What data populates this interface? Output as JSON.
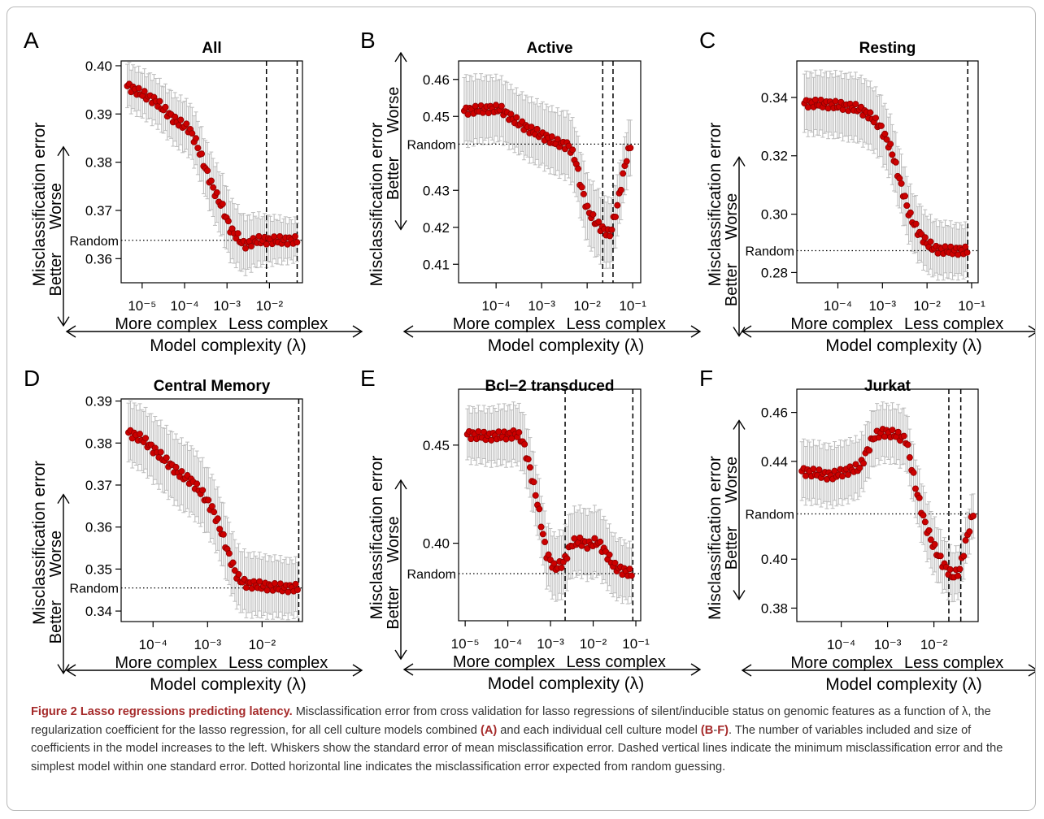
{
  "chart_data": [
    {
      "panel": "A",
      "title": "All",
      "type": "scatter",
      "xlabel": "Model complexity (λ)",
      "ylabel": "Misclassification error",
      "arrow_left_label": "More complex",
      "arrow_right_label": "Less complex",
      "y_arrow_up_label": "Worse",
      "y_arrow_down_label": "Better",
      "random_label": "Random",
      "x_scale": "log",
      "xlim": [
        3.2e-06,
        0.06
      ],
      "ylim": [
        0.355,
        0.401
      ],
      "x_tick_labels": [
        "10⁻⁵",
        "10⁻⁴",
        "10⁻³",
        "10⁻²"
      ],
      "x_ticks": [
        1e-05,
        0.0001,
        0.001,
        0.01
      ],
      "y_ticks": [
        0.36,
        0.37,
        0.38,
        0.39,
        0.4
      ],
      "y_tick_labels": [
        "0.36",
        "0.37",
        "0.38",
        "0.39",
        "0.40"
      ],
      "random_y": 0.3638,
      "vlines": [
        0.0085,
        0.045
      ],
      "curve": {
        "log_x": [
          -5.35,
          -4.7,
          -4.2,
          -3.9,
          -3.72,
          -3.5,
          -3.3,
          -3.1,
          -3.0,
          -2.9,
          -2.75,
          -2.6,
          -2.3,
          -1.9,
          -1.35
        ],
        "y": [
          0.3958,
          0.3928,
          0.3885,
          0.387,
          0.384,
          0.3785,
          0.374,
          0.3705,
          0.368,
          0.3658,
          0.3645,
          0.3628,
          0.3638,
          0.3638,
          0.3638
        ]
      },
      "err": {
        "log_x": [
          -5.35,
          -4.5,
          -3.7,
          -3.0,
          -2.2,
          -1.35
        ],
        "se": [
          0.0045,
          0.0048,
          0.0055,
          0.0065,
          0.005,
          0.004
        ]
      }
    },
    {
      "panel": "B",
      "title": "Active",
      "type": "scatter",
      "xlabel": "Model complexity (λ)",
      "ylabel": "Misclassification error",
      "arrow_left_label": "More complex",
      "arrow_right_label": "Less complex",
      "y_arrow_up_label": "Worse",
      "y_arrow_down_label": "Better",
      "random_label": "Random",
      "x_scale": "log",
      "xlim": [
        1.5e-05,
        0.15
      ],
      "ylim": [
        0.405,
        0.465
      ],
      "x_tick_labels": [
        "10⁻⁴",
        "10⁻³",
        "10⁻²",
        "10⁻¹"
      ],
      "x_ticks": [
        0.0001,
        0.001,
        0.01,
        0.1
      ],
      "y_ticks": [
        0.41,
        0.42,
        0.43,
        0.45,
        0.46
      ],
      "y_tick_labels": [
        "0.41",
        "0.42",
        "0.43",
        "0.45",
        "0.46"
      ],
      "random_y": 0.4425,
      "vlines": [
        0.022,
        0.037
      ],
      "curve": {
        "log_x": [
          -4.7,
          -4.2,
          -3.9,
          -3.6,
          -3.4,
          -3.2,
          -3.0,
          -2.7,
          -2.4,
          -2.25,
          -2.15,
          -2.0,
          -1.85,
          -1.7,
          -1.5,
          -1.35,
          -1.15,
          -1.05
        ],
        "y": [
          0.4515,
          0.452,
          0.452,
          0.449,
          0.4475,
          0.446,
          0.445,
          0.443,
          0.442,
          0.438,
          0.432,
          0.425,
          0.422,
          0.42,
          0.418,
          0.425,
          0.438,
          0.442
        ]
      },
      "err": {
        "log_x": [
          -4.7,
          -3.6,
          -2.6,
          -2.0,
          -1.6,
          -1.05
        ],
        "se": [
          0.009,
          0.008,
          0.0085,
          0.009,
          0.009,
          0.0075
        ]
      }
    },
    {
      "panel": "C",
      "title": "Resting",
      "type": "scatter",
      "xlabel": "Model complexity (λ)",
      "ylabel": "Misclassification error",
      "arrow_left_label": "More complex",
      "arrow_right_label": "Less complex",
      "y_arrow_up_label": "Worse",
      "y_arrow_down_label": "Better",
      "random_label": "Random",
      "x_scale": "log",
      "xlim": [
        1.2e-05,
        0.14
      ],
      "ylim": [
        0.2765,
        0.3525
      ],
      "x_tick_labels": [
        "10⁻⁴",
        "10⁻³",
        "10⁻²",
        "10⁻¹"
      ],
      "x_ticks": [
        0.0001,
        0.001,
        0.01,
        0.1
      ],
      "y_ticks": [
        0.28,
        0.3,
        0.32,
        0.34
      ],
      "y_tick_labels": [
        "0.28",
        "0.30",
        "0.32",
        "0.34"
      ],
      "random_y": 0.2875,
      "vlines": [
        0.082
      ],
      "curve": {
        "log_x": [
          -4.75,
          -4.3,
          -3.85,
          -3.55,
          -3.3,
          -3.05,
          -2.8,
          -2.6,
          -2.4,
          -2.2,
          -2.0,
          -1.8,
          -1.5,
          -1.1
        ],
        "y": [
          0.338,
          0.3378,
          0.337,
          0.3362,
          0.334,
          0.33,
          0.322,
          0.311,
          0.3,
          0.294,
          0.29,
          0.288,
          0.2875,
          0.2875
        ]
      },
      "err": {
        "log_x": [
          -4.75,
          -3.5,
          -2.5,
          -1.1
        ],
        "se": [
          0.01,
          0.011,
          0.01,
          0.0085
        ]
      }
    },
    {
      "panel": "D",
      "title": "Central Memory",
      "type": "scatter",
      "xlabel": "Model complexity (λ)",
      "ylabel": "Misclassification error",
      "arrow_left_label": "More complex",
      "arrow_right_label": "Less complex",
      "y_arrow_up_label": "Worse",
      "y_arrow_down_label": "Better",
      "random_label": "Random",
      "x_scale": "log",
      "xlim": [
        2.6e-05,
        0.055
      ],
      "ylim": [
        0.3375,
        0.3905
      ],
      "x_tick_labels": [
        "10⁻⁴",
        "10⁻³",
        "10⁻²"
      ],
      "x_ticks": [
        0.0001,
        0.001,
        0.01
      ],
      "y_ticks": [
        0.34,
        0.35,
        0.36,
        0.37,
        0.38,
        0.39
      ],
      "y_tick_labels": [
        "0.34",
        "0.35",
        "0.36",
        "0.37",
        "0.38",
        "0.39"
      ],
      "random_y": 0.3455,
      "vlines": [
        0.047
      ],
      "curve": {
        "log_x": [
          -4.45,
          -4.2,
          -3.95,
          -3.7,
          -3.5,
          -3.3,
          -3.1,
          -2.9,
          -2.75,
          -2.6,
          -2.45,
          -2.3,
          -2.0,
          -1.6,
          -1.35
        ],
        "y": [
          0.3825,
          0.381,
          0.378,
          0.375,
          0.3725,
          0.371,
          0.368,
          0.364,
          0.359,
          0.353,
          0.348,
          0.3465,
          0.346,
          0.3455,
          0.3455
        ]
      },
      "err": {
        "log_x": [
          -4.45,
          -3.5,
          -2.7,
          -1.35
        ],
        "se": [
          0.007,
          0.008,
          0.0075,
          0.0065
        ]
      }
    },
    {
      "panel": "E",
      "title": "Bcl−2 transduced",
      "type": "scatter",
      "xlabel": "Model complexity (λ)",
      "ylabel": "Misclassification error",
      "arrow_left_label": "More complex",
      "arrow_right_label": "Less complex",
      "y_arrow_up_label": "Worse",
      "y_arrow_down_label": "Better",
      "random_label": "Random",
      "x_scale": "log",
      "xlim": [
        7e-06,
        0.13
      ],
      "ylim": [
        0.3605,
        0.4785
      ],
      "x_tick_labels": [
        "10⁻⁵",
        "10⁻⁴",
        "10⁻³",
        "10⁻²",
        "10⁻¹"
      ],
      "x_ticks": [
        1e-05,
        0.0001,
        0.001,
        0.01,
        0.1
      ],
      "y_ticks": [
        0.4,
        0.45
      ],
      "y_tick_labels": [
        "0.40",
        "0.45"
      ],
      "random_y": 0.3845,
      "vlines": [
        0.0022,
        0.085
      ],
      "curve": {
        "log_x": [
          -4.95,
          -4.5,
          -4.0,
          -3.8,
          -3.65,
          -3.5,
          -3.3,
          -3.1,
          -2.9,
          -2.7,
          -2.5,
          -2.3,
          -2.1,
          -1.9,
          -1.7,
          -1.5,
          -1.3,
          -1.1
        ],
        "y": [
          0.4555,
          0.4545,
          0.455,
          0.456,
          0.452,
          0.44,
          0.42,
          0.395,
          0.387,
          0.39,
          0.4,
          0.401,
          0.399,
          0.401,
          0.395,
          0.388,
          0.386,
          0.3845
        ]
      },
      "err": {
        "log_x": [
          -4.95,
          -3.6,
          -3.0,
          -2.0,
          -1.1
        ],
        "se": [
          0.013,
          0.015,
          0.016,
          0.017,
          0.014
        ]
      }
    },
    {
      "panel": "F",
      "title": "Jurkat",
      "type": "scatter",
      "xlabel": "Model complexity (λ)",
      "ylabel": "Misclassification error",
      "arrow_left_label": "More complex",
      "arrow_right_label": "Less complex",
      "y_arrow_up_label": "Worse",
      "y_arrow_down_label": "Better",
      "random_label": "Random",
      "x_scale": "log",
      "xlim": [
        1.1e-05,
        0.09
      ],
      "ylim": [
        0.3745,
        0.4695
      ],
      "x_tick_labels": [
        "10⁻⁴",
        "10⁻³",
        "10⁻²"
      ],
      "x_ticks": [
        0.0001,
        0.001,
        0.01
      ],
      "y_ticks": [
        0.38,
        0.4,
        0.44,
        0.46
      ],
      "y_tick_labels": [
        "0.38",
        "0.40",
        "0.44",
        "0.46"
      ],
      "random_y": 0.4185,
      "vlines": [
        0.021,
        0.038
      ],
      "curve": {
        "log_x": [
          -4.85,
          -4.5,
          -4.2,
          -3.9,
          -3.6,
          -3.3,
          -3.1,
          -2.85,
          -2.6,
          -2.4,
          -2.2,
          -2.0,
          -1.8,
          -1.6,
          -1.45,
          -1.3,
          -1.15
        ],
        "y": [
          0.436,
          0.435,
          0.434,
          0.436,
          0.4375,
          0.45,
          0.452,
          0.451,
          0.449,
          0.43,
          0.415,
          0.405,
          0.398,
          0.393,
          0.395,
          0.408,
          0.4185
        ]
      },
      "err": {
        "log_x": [
          -4.85,
          -3.9,
          -3.0,
          -2.2,
          -1.6,
          -1.15
        ],
        "se": [
          0.012,
          0.012,
          0.011,
          0.012,
          0.01,
          0.009
        ]
      }
    }
  ],
  "caption": {
    "title": "Figure 2 Lasso regressions predicting latency.",
    "s1": " Misclassification error from cross validation for lasso regressions of silent/inducible status on genomic features as a function of λ, the regularization coefficient for the lasso regression, for all cell culture models combined ",
    "b1": "(A)",
    "s2": " and each individual cell culture model ",
    "b2": "(B",
    "s3": "-",
    "b3": "F)",
    "s4": ". The number of variables included and size of coefficients in the model increases to the left. Whiskers show the standard error of mean misclassification error. Dashed vertical lines indicate the minimum misclassification error and the simplest model within one standard error. Dotted horizontal line indicates the misclassification error expected from random guessing."
  },
  "colors": {
    "point_fill": "#cc0000",
    "point_stroke": "#8b0000",
    "whisker": "#bdbdbd",
    "caption_title": "#a52a2a",
    "caption_text": "#333333"
  }
}
